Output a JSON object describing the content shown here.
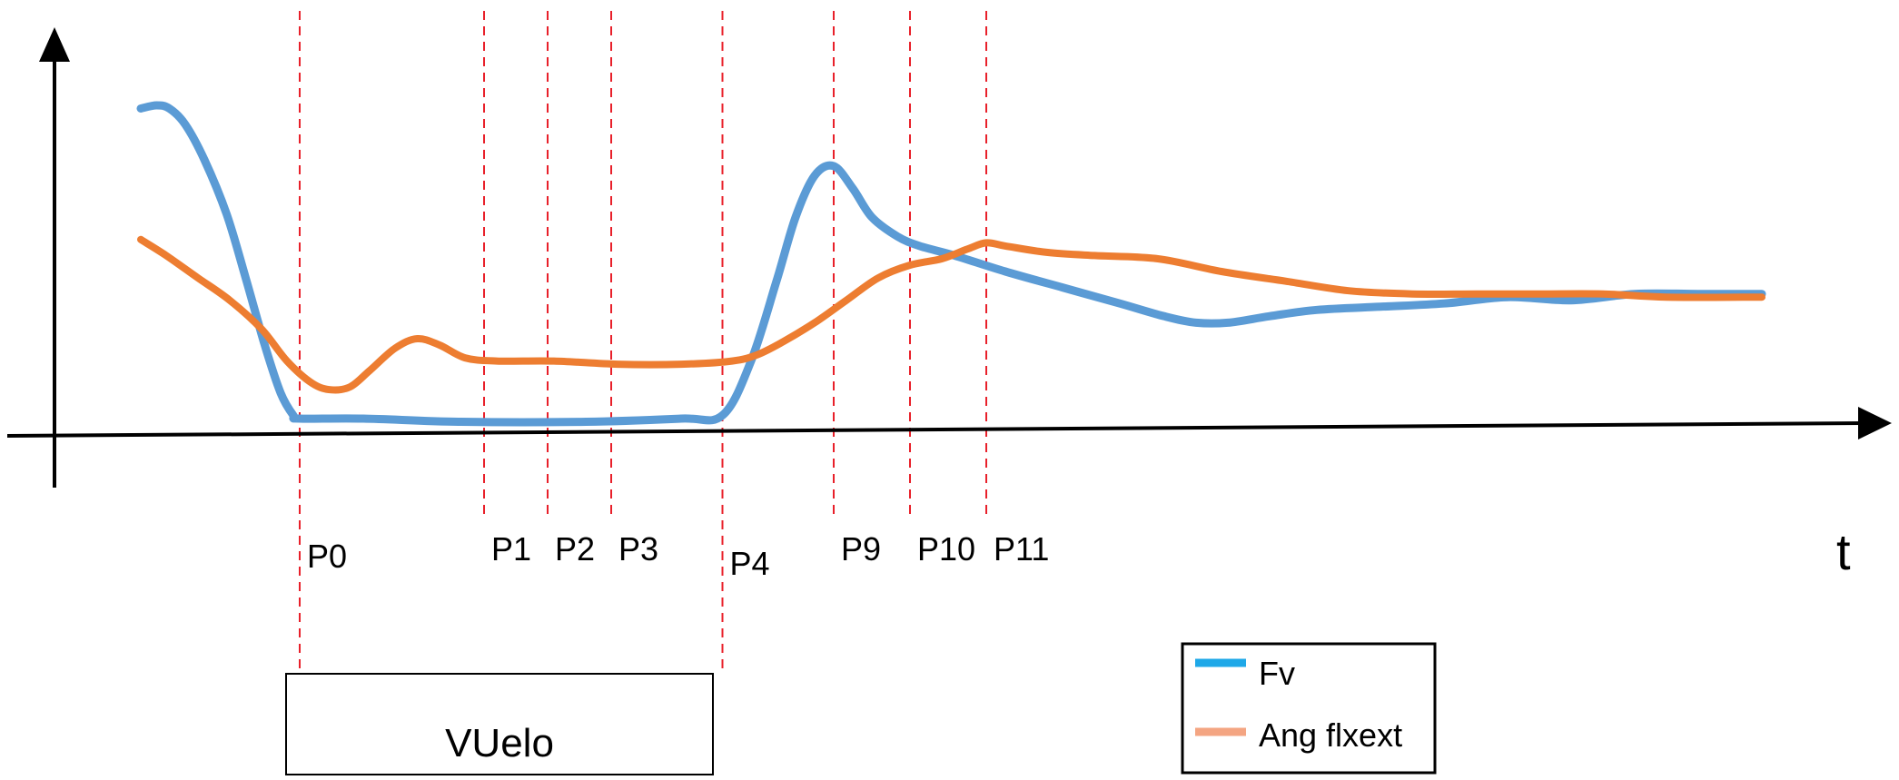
{
  "chart_data": {
    "type": "line",
    "title": "",
    "xlabel": "t",
    "ylabel": "",
    "grid": false,
    "legend_position": "bottom-right",
    "series": [
      {
        "name": "Fv",
        "color": "#5b9bd5",
        "points": [
          [
            0.0,
            0.99
          ],
          [
            0.05,
            1.0
          ],
          [
            0.09,
            0.99
          ],
          [
            0.14,
            0.94
          ],
          [
            0.2,
            0.83
          ],
          [
            0.27,
            0.66
          ],
          [
            0.33,
            0.46
          ],
          [
            0.39,
            0.25
          ],
          [
            0.44,
            0.1
          ],
          [
            0.48,
            0.03
          ],
          [
            0.5,
            0.02
          ],
          [
            0.7,
            0.02
          ],
          [
            1.0,
            0.01
          ],
          [
            1.4,
            0.01
          ],
          [
            1.7,
            0.02
          ],
          [
            1.83,
            0.03
          ],
          [
            1.92,
            0.2
          ],
          [
            2.0,
            0.45
          ],
          [
            2.06,
            0.65
          ],
          [
            2.12,
            0.78
          ],
          [
            2.18,
            0.81
          ],
          [
            2.24,
            0.74
          ],
          [
            2.3,
            0.65
          ],
          [
            2.38,
            0.59
          ],
          [
            2.45,
            0.56
          ],
          [
            2.56,
            0.53
          ],
          [
            2.72,
            0.48
          ],
          [
            2.9,
            0.43
          ],
          [
            3.08,
            0.38
          ],
          [
            3.22,
            0.34
          ],
          [
            3.32,
            0.32
          ],
          [
            3.42,
            0.32
          ],
          [
            3.55,
            0.34
          ],
          [
            3.7,
            0.36
          ],
          [
            3.9,
            0.37
          ],
          [
            4.1,
            0.38
          ],
          [
            4.3,
            0.4
          ],
          [
            4.5,
            0.39
          ],
          [
            4.7,
            0.41
          ],
          [
            4.9,
            0.41
          ],
          [
            5.1,
            0.41
          ]
        ]
      },
      {
        "name": "Ang flxext",
        "color": "#ed7d31",
        "points": [
          [
            0.0,
            0.58
          ],
          [
            0.08,
            0.53
          ],
          [
            0.18,
            0.46
          ],
          [
            0.28,
            0.39
          ],
          [
            0.38,
            0.3
          ],
          [
            0.46,
            0.2
          ],
          [
            0.54,
            0.13
          ],
          [
            0.6,
            0.11
          ],
          [
            0.66,
            0.12
          ],
          [
            0.72,
            0.17
          ],
          [
            0.8,
            0.24
          ],
          [
            0.87,
            0.27
          ],
          [
            0.94,
            0.25
          ],
          [
            1.02,
            0.21
          ],
          [
            1.12,
            0.2
          ],
          [
            1.3,
            0.2
          ],
          [
            1.5,
            0.19
          ],
          [
            1.7,
            0.19
          ],
          [
            1.86,
            0.2
          ],
          [
            1.94,
            0.22
          ],
          [
            2.02,
            0.26
          ],
          [
            2.12,
            0.32
          ],
          [
            2.22,
            0.39
          ],
          [
            2.32,
            0.46
          ],
          [
            2.42,
            0.5
          ],
          [
            2.52,
            0.52
          ],
          [
            2.6,
            0.55
          ],
          [
            2.66,
            0.57
          ],
          [
            2.72,
            0.56
          ],
          [
            2.85,
            0.54
          ],
          [
            3.0,
            0.53
          ],
          [
            3.2,
            0.52
          ],
          [
            3.4,
            0.48
          ],
          [
            3.6,
            0.45
          ],
          [
            3.8,
            0.42
          ],
          [
            4.0,
            0.41
          ],
          [
            4.2,
            0.41
          ],
          [
            4.4,
            0.41
          ],
          [
            4.6,
            0.41
          ],
          [
            4.8,
            0.4
          ],
          [
            5.1,
            0.4
          ]
        ]
      }
    ],
    "events": [
      {
        "label": "P0",
        "x": 0.5
      },
      {
        "label": "P1",
        "x": 1.08
      },
      {
        "label": "P2",
        "x": 1.28
      },
      {
        "label": "P3",
        "x": 1.48
      },
      {
        "label": "P4",
        "x": 1.83
      },
      {
        "label": "P9",
        "x": 2.18
      },
      {
        "label": "P10",
        "x": 2.42
      },
      {
        "label": "P11",
        "x": 2.66
      }
    ],
    "phase_box": {
      "label": "VUelo",
      "from": "P0",
      "to": "P4"
    }
  }
}
